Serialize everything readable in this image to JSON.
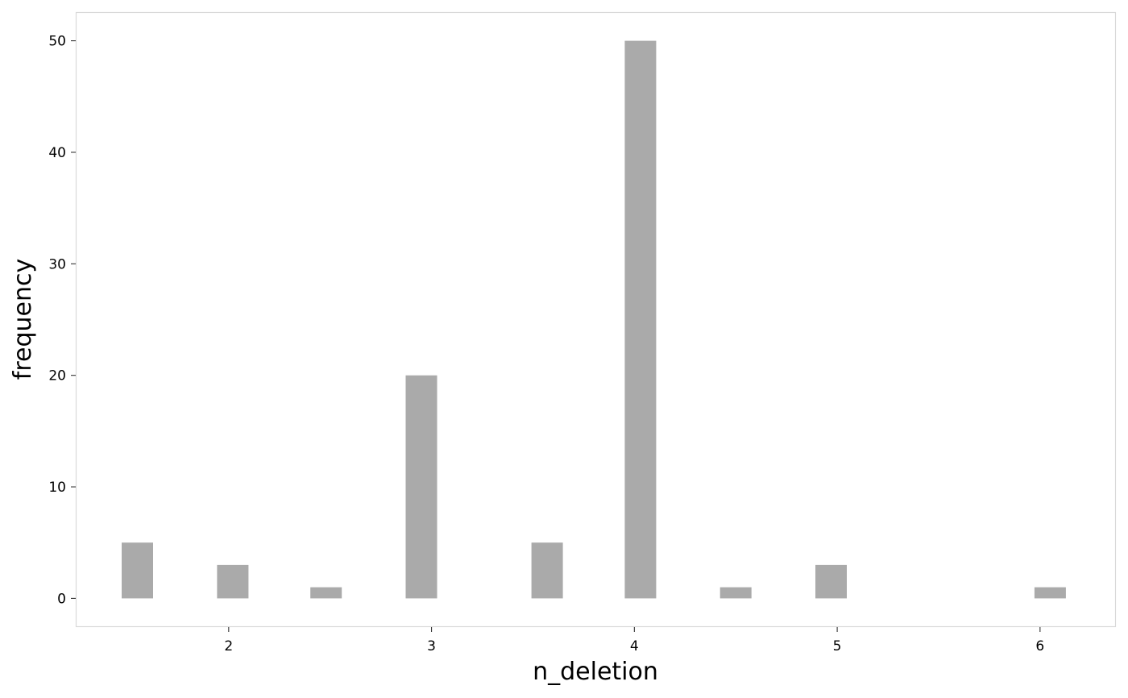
{
  "chart_data": {
    "type": "bar",
    "xlabel": "n_deletion",
    "ylabel": "frequency",
    "x": [
      1.55,
      2.02,
      2.48,
      2.95,
      3.57,
      4.03,
      4.5,
      4.97,
      6.05
    ],
    "values": [
      5,
      3,
      1,
      20,
      5,
      50,
      1,
      3,
      1
    ],
    "xlim": [
      1.25,
      6.37
    ],
    "ylim": [
      -2.5,
      52.5
    ],
    "xticks": [
      2,
      3,
      4,
      5,
      6
    ],
    "yticks": [
      0,
      10,
      20,
      30,
      40,
      50
    ],
    "grid": false,
    "bar_color": "#aaaaaa",
    "panel_border_color": "#d9d9d9"
  }
}
